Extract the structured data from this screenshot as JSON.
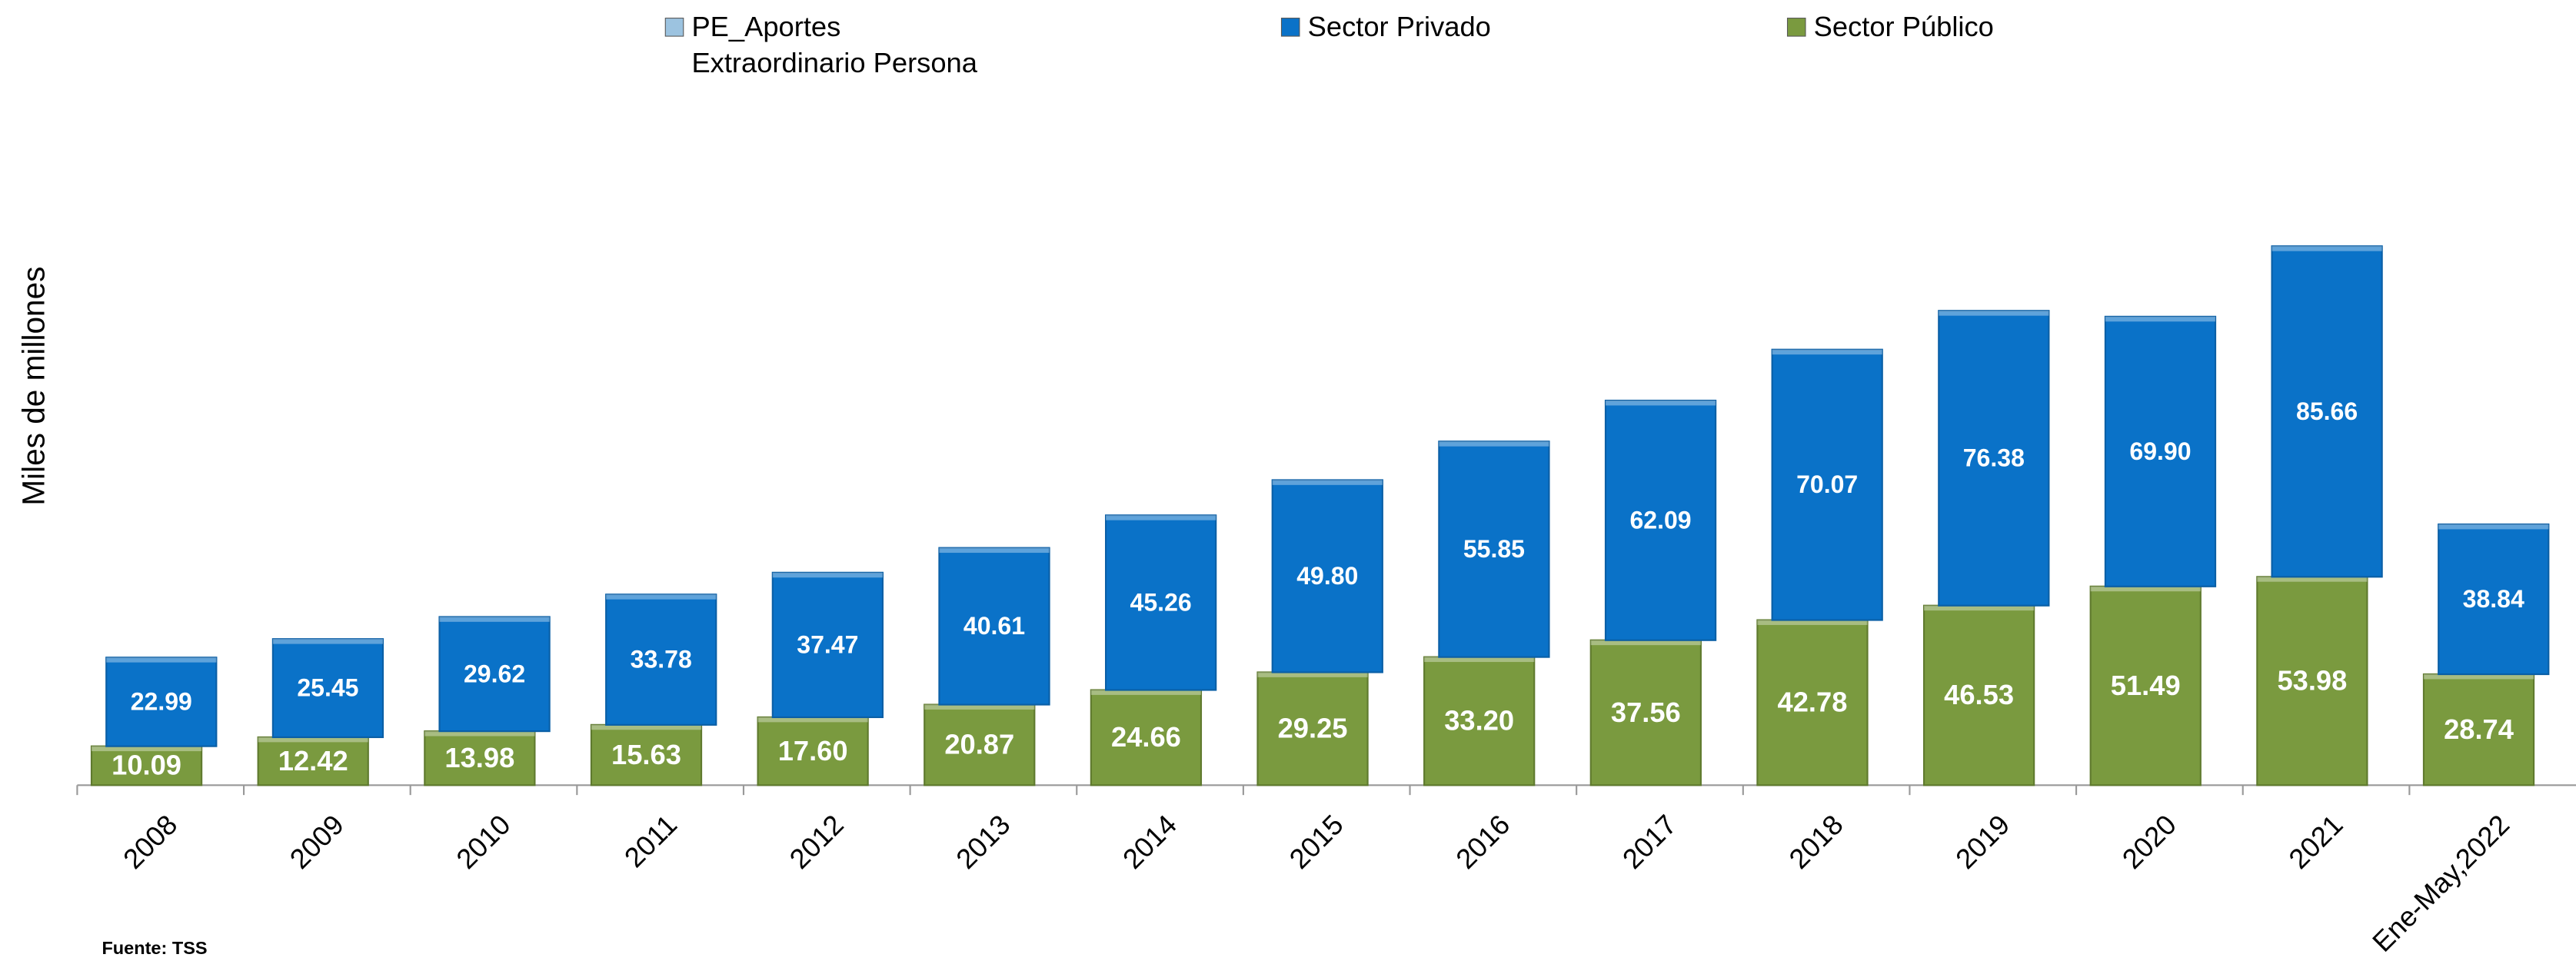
{
  "chart_data": {
    "type": "stacked_bar",
    "y_label": "Miles de millones",
    "source": "Fuente: TSS",
    "categories": [
      "2008",
      "2009",
      "2010",
      "2011",
      "2012",
      "2013",
      "2014",
      "2015",
      "2016",
      "2017",
      "2018",
      "2019",
      "2020",
      "2021",
      "Ene-May,2022"
    ],
    "series": [
      {
        "name": "PE_Aportes Extraordinario Persona",
        "color": "#9cc3e0",
        "values": [
          null,
          null,
          null,
          null,
          null,
          null,
          null,
          null,
          null,
          null,
          null,
          null,
          null,
          null,
          null
        ]
      },
      {
        "name": "Sector Privado",
        "color": "#0a72c8",
        "values": [
          22.99,
          25.45,
          29.62,
          33.78,
          37.47,
          40.61,
          45.26,
          49.8,
          55.85,
          62.09,
          70.07,
          76.38,
          69.9,
          85.66,
          38.84
        ],
        "value_labels": [
          "22.99",
          "25.45",
          "29.62",
          "33.78",
          "37.47",
          "40.61",
          "45.26",
          "49.80",
          "55.85",
          "62.09",
          "70.07",
          "76.38",
          "69.90",
          "85.66",
          "38.84"
        ]
      },
      {
        "name": "Sector  Público",
        "color": "#7a9a3f",
        "values": [
          10.09,
          12.42,
          13.98,
          15.63,
          17.6,
          20.87,
          24.66,
          29.25,
          33.2,
          37.56,
          42.78,
          46.53,
          51.49,
          53.98,
          28.74
        ],
        "value_labels": [
          "10.09",
          "12.42",
          "13.98",
          "15.63",
          "17.60",
          "20.87",
          "24.66",
          "29.25",
          "33.20",
          "37.56",
          "42.78",
          "46.53",
          "51.49",
          "53.98",
          "28.74"
        ]
      }
    ],
    "ylim": [
      0,
      160
    ]
  }
}
